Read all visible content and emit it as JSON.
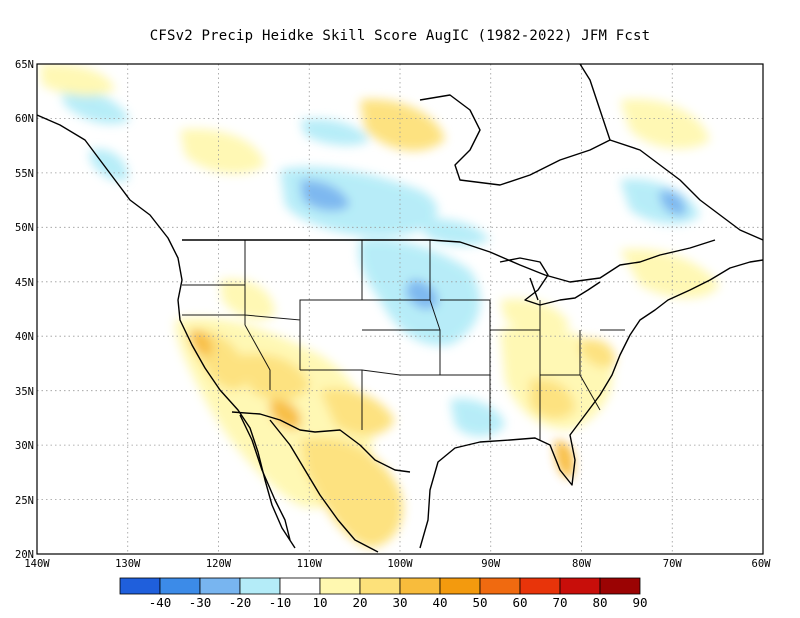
{
  "title": "CFSv2 Precip Heidke Skill Score AugIC (1982-2022) JFM Fcst",
  "map": {
    "lon_range": [
      -140,
      -60
    ],
    "lat_range": [
      20,
      65
    ],
    "grid_lines": "dotted",
    "lat_ticks": [
      "65N",
      "60N",
      "55N",
      "50N",
      "45N",
      "40N",
      "35N",
      "30N",
      "25N",
      "20N"
    ],
    "lon_ticks": [
      "140W",
      "130W",
      "120W",
      "110W",
      "100W",
      "90W",
      "80W",
      "70W",
      "60W"
    ]
  },
  "colorbar": {
    "labels": [
      "-40",
      "-30",
      "-20",
      "-10",
      "10",
      "20",
      "30",
      "40",
      "50",
      "60",
      "70",
      "80",
      "90"
    ],
    "colors": [
      "#1f5fdc",
      "#3c8be8",
      "#78b5f0",
      "#b4ecf8",
      "#ffffff",
      "#fff8b0",
      "#fde17a",
      "#f8bc3c",
      "#f39a0e",
      "#f06a10",
      "#e8340a",
      "#c80e0a",
      "#9b0303"
    ]
  }
}
